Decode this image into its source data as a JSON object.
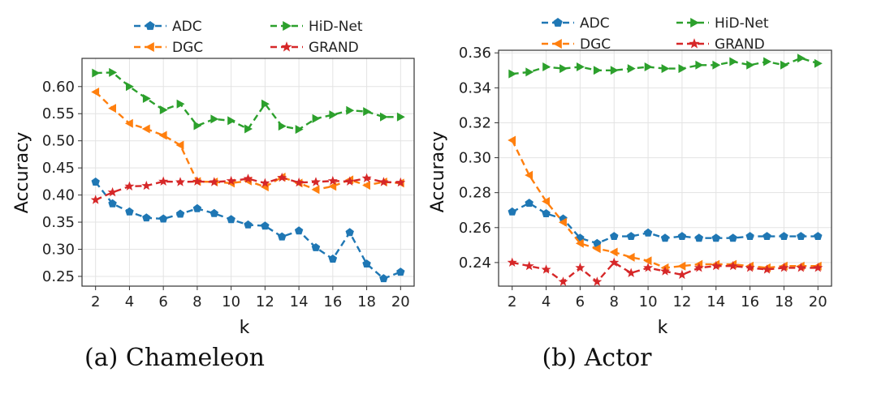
{
  "chart_data": [
    {
      "type": "line",
      "title": "",
      "caption": "(a) Chameleon",
      "xlabel": "k",
      "ylabel": "Accuracy",
      "x": [
        2,
        3,
        4,
        5,
        6,
        7,
        8,
        9,
        10,
        11,
        12,
        13,
        14,
        15,
        16,
        17,
        18,
        19,
        20
      ],
      "xticks": [
        2,
        4,
        6,
        8,
        10,
        12,
        14,
        16,
        18,
        20
      ],
      "xtick_labels": [
        "2",
        "4",
        "6",
        "8",
        "10",
        "12",
        "14",
        "16",
        "18",
        "20"
      ],
      "xlim": [
        1.2,
        20.8
      ],
      "ylim": [
        0.232,
        0.652
      ],
      "yticks": [
        0.25,
        0.3,
        0.35,
        0.4,
        0.45,
        0.5,
        0.55,
        0.6
      ],
      "ytick_labels": [
        "0.25",
        "0.30",
        "0.35",
        "0.40",
        "0.45",
        "0.50",
        "0.55",
        "0.60"
      ],
      "grid": true,
      "legend": "above, two columns",
      "series": [
        {
          "name": "ADC",
          "color": "#1f77b4",
          "marker": "pentagon",
          "values": [
            0.424,
            0.384,
            0.369,
            0.358,
            0.356,
            0.365,
            0.375,
            0.366,
            0.355,
            0.345,
            0.343,
            0.323,
            0.334,
            0.303,
            0.282,
            0.331,
            0.273,
            0.246,
            0.258
          ]
        },
        {
          "name": "DGC",
          "color": "#ff7f0e",
          "marker": "triangle-left",
          "values": [
            0.59,
            0.56,
            0.532,
            0.522,
            0.51,
            0.492,
            0.425,
            0.424,
            0.422,
            0.426,
            0.415,
            0.433,
            0.422,
            0.41,
            0.416,
            0.428,
            0.418,
            0.424,
            0.422
          ]
        },
        {
          "name": "HiD-Net",
          "color": "#2ca02c",
          "marker": "triangle-right",
          "values": [
            0.625,
            0.626,
            0.6,
            0.578,
            0.557,
            0.568,
            0.528,
            0.54,
            0.537,
            0.522,
            0.568,
            0.527,
            0.521,
            0.541,
            0.548,
            0.556,
            0.554,
            0.544,
            0.544
          ]
        },
        {
          "name": "GRAND",
          "color": "#d62728",
          "marker": "star",
          "values": [
            0.391,
            0.405,
            0.416,
            0.417,
            0.425,
            0.424,
            0.425,
            0.424,
            0.426,
            0.43,
            0.422,
            0.432,
            0.423,
            0.424,
            0.426,
            0.425,
            0.431,
            0.424,
            0.423
          ]
        }
      ]
    },
    {
      "type": "line",
      "title": "",
      "caption": "(b) Actor",
      "xlabel": "k",
      "ylabel": "Accuracy",
      "x": [
        2,
        3,
        4,
        5,
        6,
        7,
        8,
        9,
        10,
        11,
        12,
        13,
        14,
        15,
        16,
        17,
        18,
        19,
        20
      ],
      "xticks": [
        2,
        4,
        6,
        8,
        10,
        12,
        14,
        16,
        18,
        20
      ],
      "xtick_labels": [
        "2",
        "4",
        "6",
        "8",
        "10",
        "12",
        "14",
        "16",
        "18",
        "20"
      ],
      "xlim": [
        1.2,
        20.8
      ],
      "ylim": [
        0.2265,
        0.3615
      ],
      "yticks": [
        0.24,
        0.26,
        0.28,
        0.3,
        0.32,
        0.34,
        0.36
      ],
      "ytick_labels": [
        "0.24",
        "0.26",
        "0.28",
        "0.30",
        "0.32",
        "0.34",
        "0.36"
      ],
      "grid": true,
      "legend": "above, two columns",
      "series": [
        {
          "name": "ADC",
          "color": "#1f77b4",
          "marker": "pentagon",
          "values": [
            0.269,
            0.274,
            0.268,
            0.265,
            0.254,
            0.251,
            0.255,
            0.255,
            0.257,
            0.254,
            0.255,
            0.254,
            0.254,
            0.254,
            0.255,
            0.255,
            0.255,
            0.255,
            0.255
          ]
        },
        {
          "name": "DGC",
          "color": "#ff7f0e",
          "marker": "triangle-left",
          "values": [
            0.31,
            0.29,
            0.275,
            0.263,
            0.251,
            0.248,
            0.246,
            0.243,
            0.241,
            0.237,
            0.238,
            0.239,
            0.239,
            0.239,
            0.238,
            0.237,
            0.238,
            0.238,
            0.238
          ]
        },
        {
          "name": "HiD-Net",
          "color": "#2ca02c",
          "marker": "triangle-right",
          "values": [
            0.348,
            0.349,
            0.352,
            0.351,
            0.352,
            0.35,
            0.35,
            0.351,
            0.352,
            0.351,
            0.351,
            0.353,
            0.353,
            0.355,
            0.353,
            0.355,
            0.353,
            0.357,
            0.354
          ]
        },
        {
          "name": "GRAND",
          "color": "#d62728",
          "marker": "star",
          "values": [
            0.24,
            0.238,
            0.236,
            0.229,
            0.237,
            0.229,
            0.24,
            0.234,
            0.237,
            0.235,
            0.233,
            0.237,
            0.238,
            0.238,
            0.237,
            0.236,
            0.237,
            0.237,
            0.237
          ]
        }
      ]
    }
  ]
}
